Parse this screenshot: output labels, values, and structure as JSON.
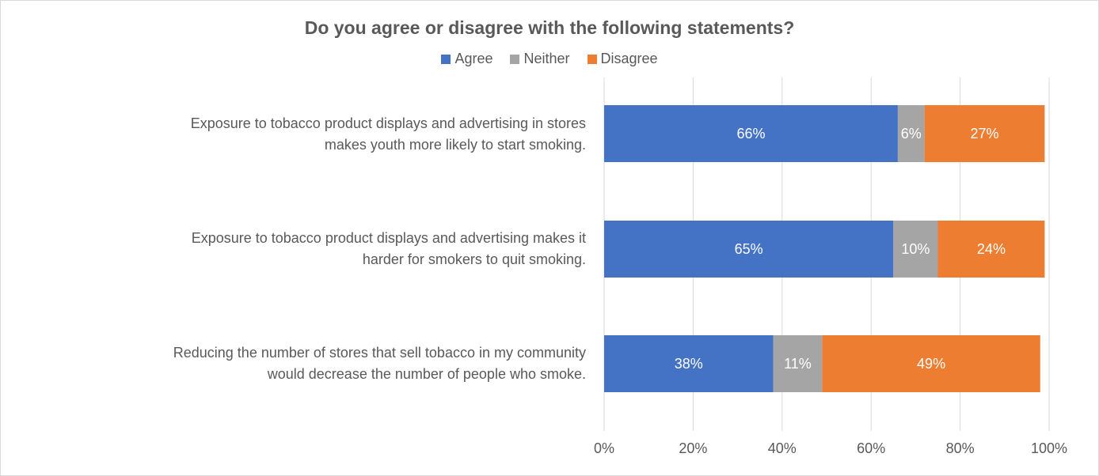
{
  "chart_data": {
    "type": "bar",
    "orientation": "horizontal",
    "stacked": true,
    "title": "Do you agree or disagree with the following statements?",
    "categories": [
      "Exposure to tobacco product displays and advertising in stores makes youth more likely to start smoking.",
      "Exposure to tobacco product displays and advertising makes it harder for smokers to quit smoking.",
      "Reducing the number of stores that sell tobacco in my community would decrease the number of people who smoke."
    ],
    "category_lines": [
      [
        "Exposure to tobacco product displays and advertising in stores",
        "makes youth more likely to start smoking."
      ],
      [
        "Exposure to tobacco product displays and advertising makes it",
        "harder for smokers to quit smoking."
      ],
      [
        "Reducing the number of stores that sell tobacco in my community",
        "would decrease the number of people who smoke."
      ]
    ],
    "series": [
      {
        "name": "Agree",
        "color": "#4472c4",
        "values": [
          66,
          65,
          38
        ],
        "labels": [
          "66%",
          "65%",
          "38%"
        ]
      },
      {
        "name": "Neither",
        "color": "#a5a5a5",
        "values": [
          6,
          10,
          11
        ],
        "labels": [
          "6%",
          "10%",
          "11%"
        ]
      },
      {
        "name": "Disagree",
        "color": "#ed7d31",
        "values": [
          27,
          24,
          49
        ],
        "labels": [
          "27%",
          "24%",
          "49%"
        ]
      }
    ],
    "xlim": [
      0,
      100
    ],
    "xticks": [
      "0%",
      "20%",
      "40%",
      "60%",
      "80%",
      "100%"
    ],
    "grid": true,
    "legend_position": "top"
  }
}
